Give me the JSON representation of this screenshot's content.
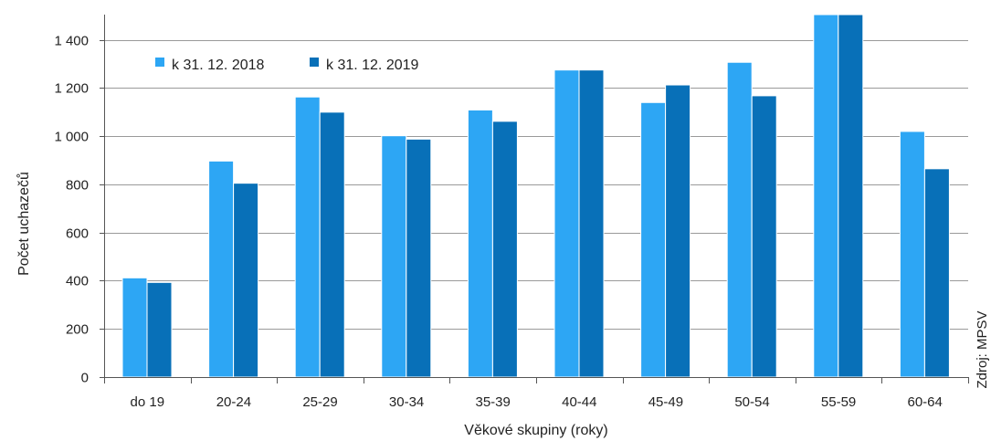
{
  "chart_data": {
    "type": "bar",
    "categories": [
      "do 19",
      "20-24",
      "25-29",
      "30-34",
      "35-39",
      "40-44",
      "45-49",
      "50-54",
      "55-59",
      "60-64"
    ],
    "series": [
      {
        "name": "k 31. 12. 2018",
        "color": "#2da6f4",
        "values": [
          412,
          897,
          1163,
          1002,
          1109,
          1275,
          1140,
          1307,
          1505,
          1020
        ]
      },
      {
        "name": "k 31. 12. 2019",
        "color": "#0870b8",
        "values": [
          393,
          805,
          1100,
          988,
          1062,
          1275,
          1213,
          1168,
          1505,
          865
        ]
      }
    ],
    "y_ticks": [
      0,
      200,
      400,
      600,
      800,
      1000,
      1200,
      1400
    ],
    "y_tick_labels": [
      "0",
      "200",
      "400",
      "600",
      "800",
      "1 000",
      "1 200",
      "1 400"
    ],
    "ylim": [
      0,
      1505
    ],
    "xlabel": "Věkové skupiny (roky)",
    "ylabel": "Počet uchazečů",
    "source": "Zdroj: MPSV",
    "legend_position": "top-left",
    "grid": true,
    "grid_color": "#9a9a9a",
    "axis_color": "#555555"
  }
}
